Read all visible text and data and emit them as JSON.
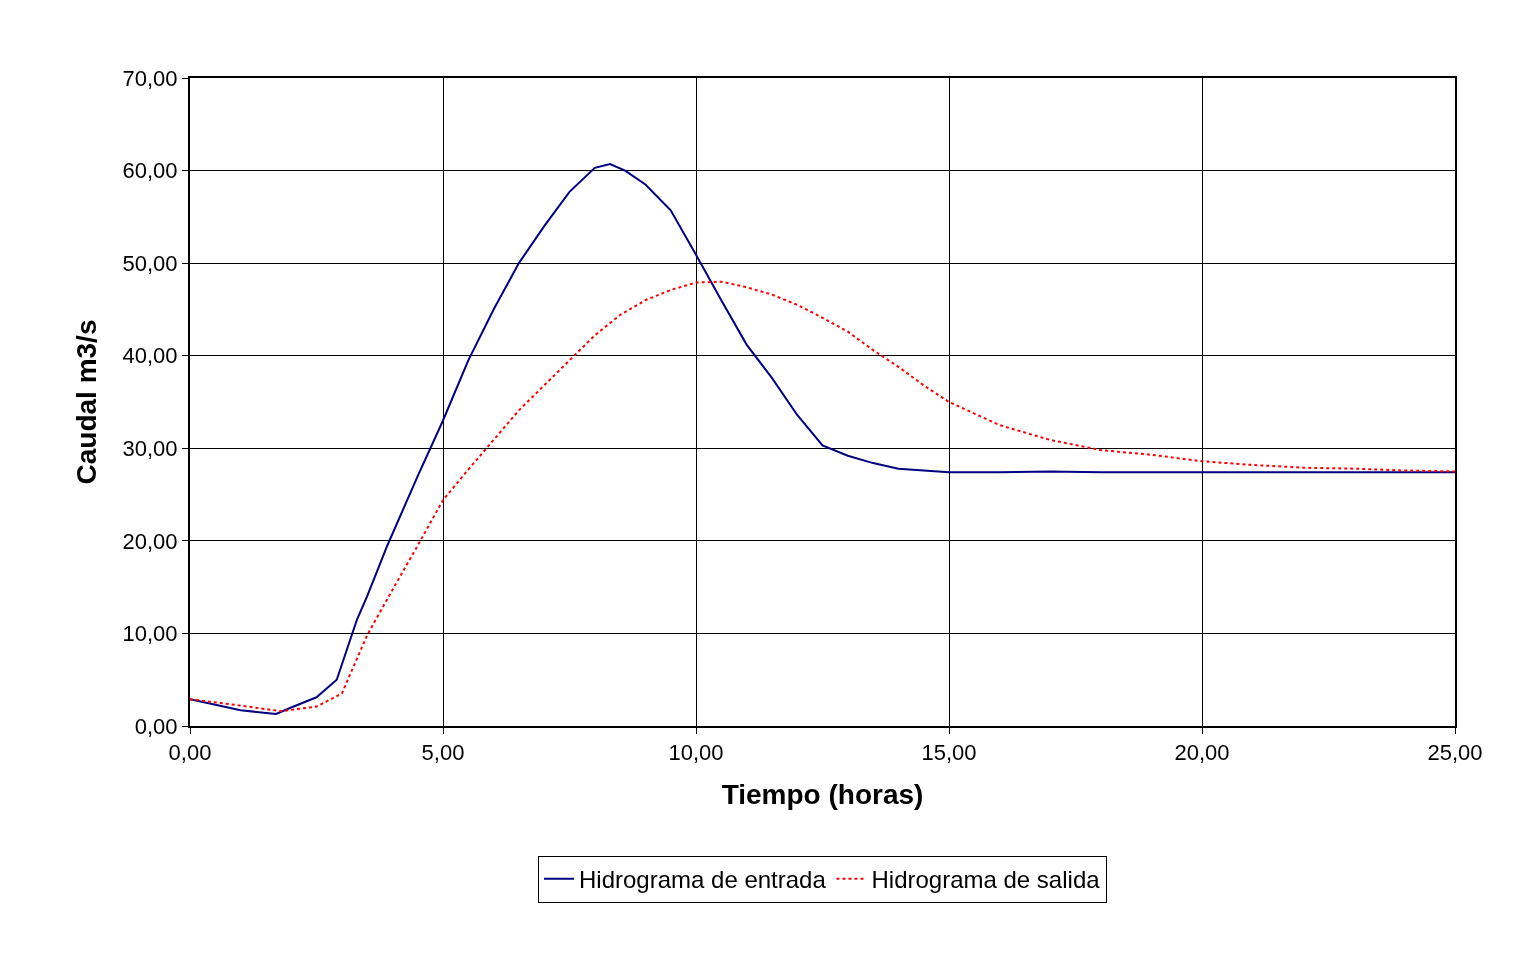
{
  "chart_data": {
    "type": "line",
    "xlabel": "Tiempo (horas)",
    "ylabel": "Caudal m3/s",
    "xlim": [
      0,
      25
    ],
    "xticks": [
      {
        "value": 0,
        "label": "0,00"
      },
      {
        "value": 5,
        "label": "5,00"
      },
      {
        "value": 10,
        "label": "10,00"
      },
      {
        "value": 15,
        "label": "15,00"
      },
      {
        "value": 20,
        "label": "20,00"
      },
      {
        "value": 25,
        "label": "25,00"
      }
    ],
    "ylim": [
      0,
      70
    ],
    "yticks": [
      {
        "value": 0,
        "label": "0,00"
      },
      {
        "value": 10,
        "label": "10,00"
      },
      {
        "value": 20,
        "label": "20,00"
      },
      {
        "value": 30,
        "label": "30,00"
      },
      {
        "value": 40,
        "label": "40,00"
      },
      {
        "value": 50,
        "label": "50,00"
      },
      {
        "value": 60,
        "label": "60,00"
      },
      {
        "value": 70,
        "label": "70,00"
      }
    ],
    "grid": true,
    "legend": "bottom",
    "marker": "none",
    "series": [
      {
        "name": "Hidrograma de entrada",
        "color": "#000080",
        "line_style": "solid",
        "x": [
          0,
          1,
          1.7,
          2,
          2.5,
          2.9,
          3.3,
          3.5,
          3.9,
          4.5,
          5,
          5.5,
          6,
          6.5,
          7,
          7.5,
          8,
          8.3,
          8.6,
          9,
          9.5,
          10,
          10.5,
          11,
          11.5,
          12,
          12.5,
          13,
          13.5,
          14,
          15,
          16,
          17,
          18,
          20,
          25
        ],
        "values": [
          2.9,
          1.7,
          1.3,
          2,
          3.1,
          5,
          11.5,
          14,
          19.5,
          27,
          33,
          39.5,
          45,
          50,
          54,
          57.7,
          60.3,
          60.7,
          60,
          58.5,
          55.7,
          50.9,
          46,
          41.2,
          37.6,
          33.6,
          30.3,
          29.2,
          28.4,
          27.8,
          27.4,
          27.4,
          27.5,
          27.4,
          27.4,
          27.4
        ]
      },
      {
        "name": "Hidrograma de salida",
        "color": "#ff0000",
        "line_style": "dotted",
        "x": [
          0,
          1,
          1.8,
          2.5,
          3,
          3.5,
          4,
          4.5,
          5,
          5.5,
          6,
          6.5,
          7,
          7.5,
          8,
          8.5,
          9,
          9.5,
          10,
          10.5,
          11,
          11.5,
          12,
          12.5,
          13,
          13.5,
          14,
          14.5,
          15,
          16,
          17,
          18,
          19,
          20,
          21,
          22,
          23,
          24,
          25
        ],
        "values": [
          2.9,
          2.2,
          1.6,
          2.1,
          3.5,
          9.8,
          14.7,
          19.5,
          24.4,
          27.7,
          30.9,
          34.1,
          36.8,
          39.5,
          42.2,
          44.4,
          46,
          47.1,
          47.9,
          48,
          47.4,
          46.6,
          45.5,
          44.1,
          42.6,
          40.6,
          38.8,
          36.8,
          35,
          32.5,
          30.9,
          29.8,
          29.3,
          28.6,
          28.2,
          27.9,
          27.8,
          27.6,
          27.5
        ]
      }
    ]
  }
}
